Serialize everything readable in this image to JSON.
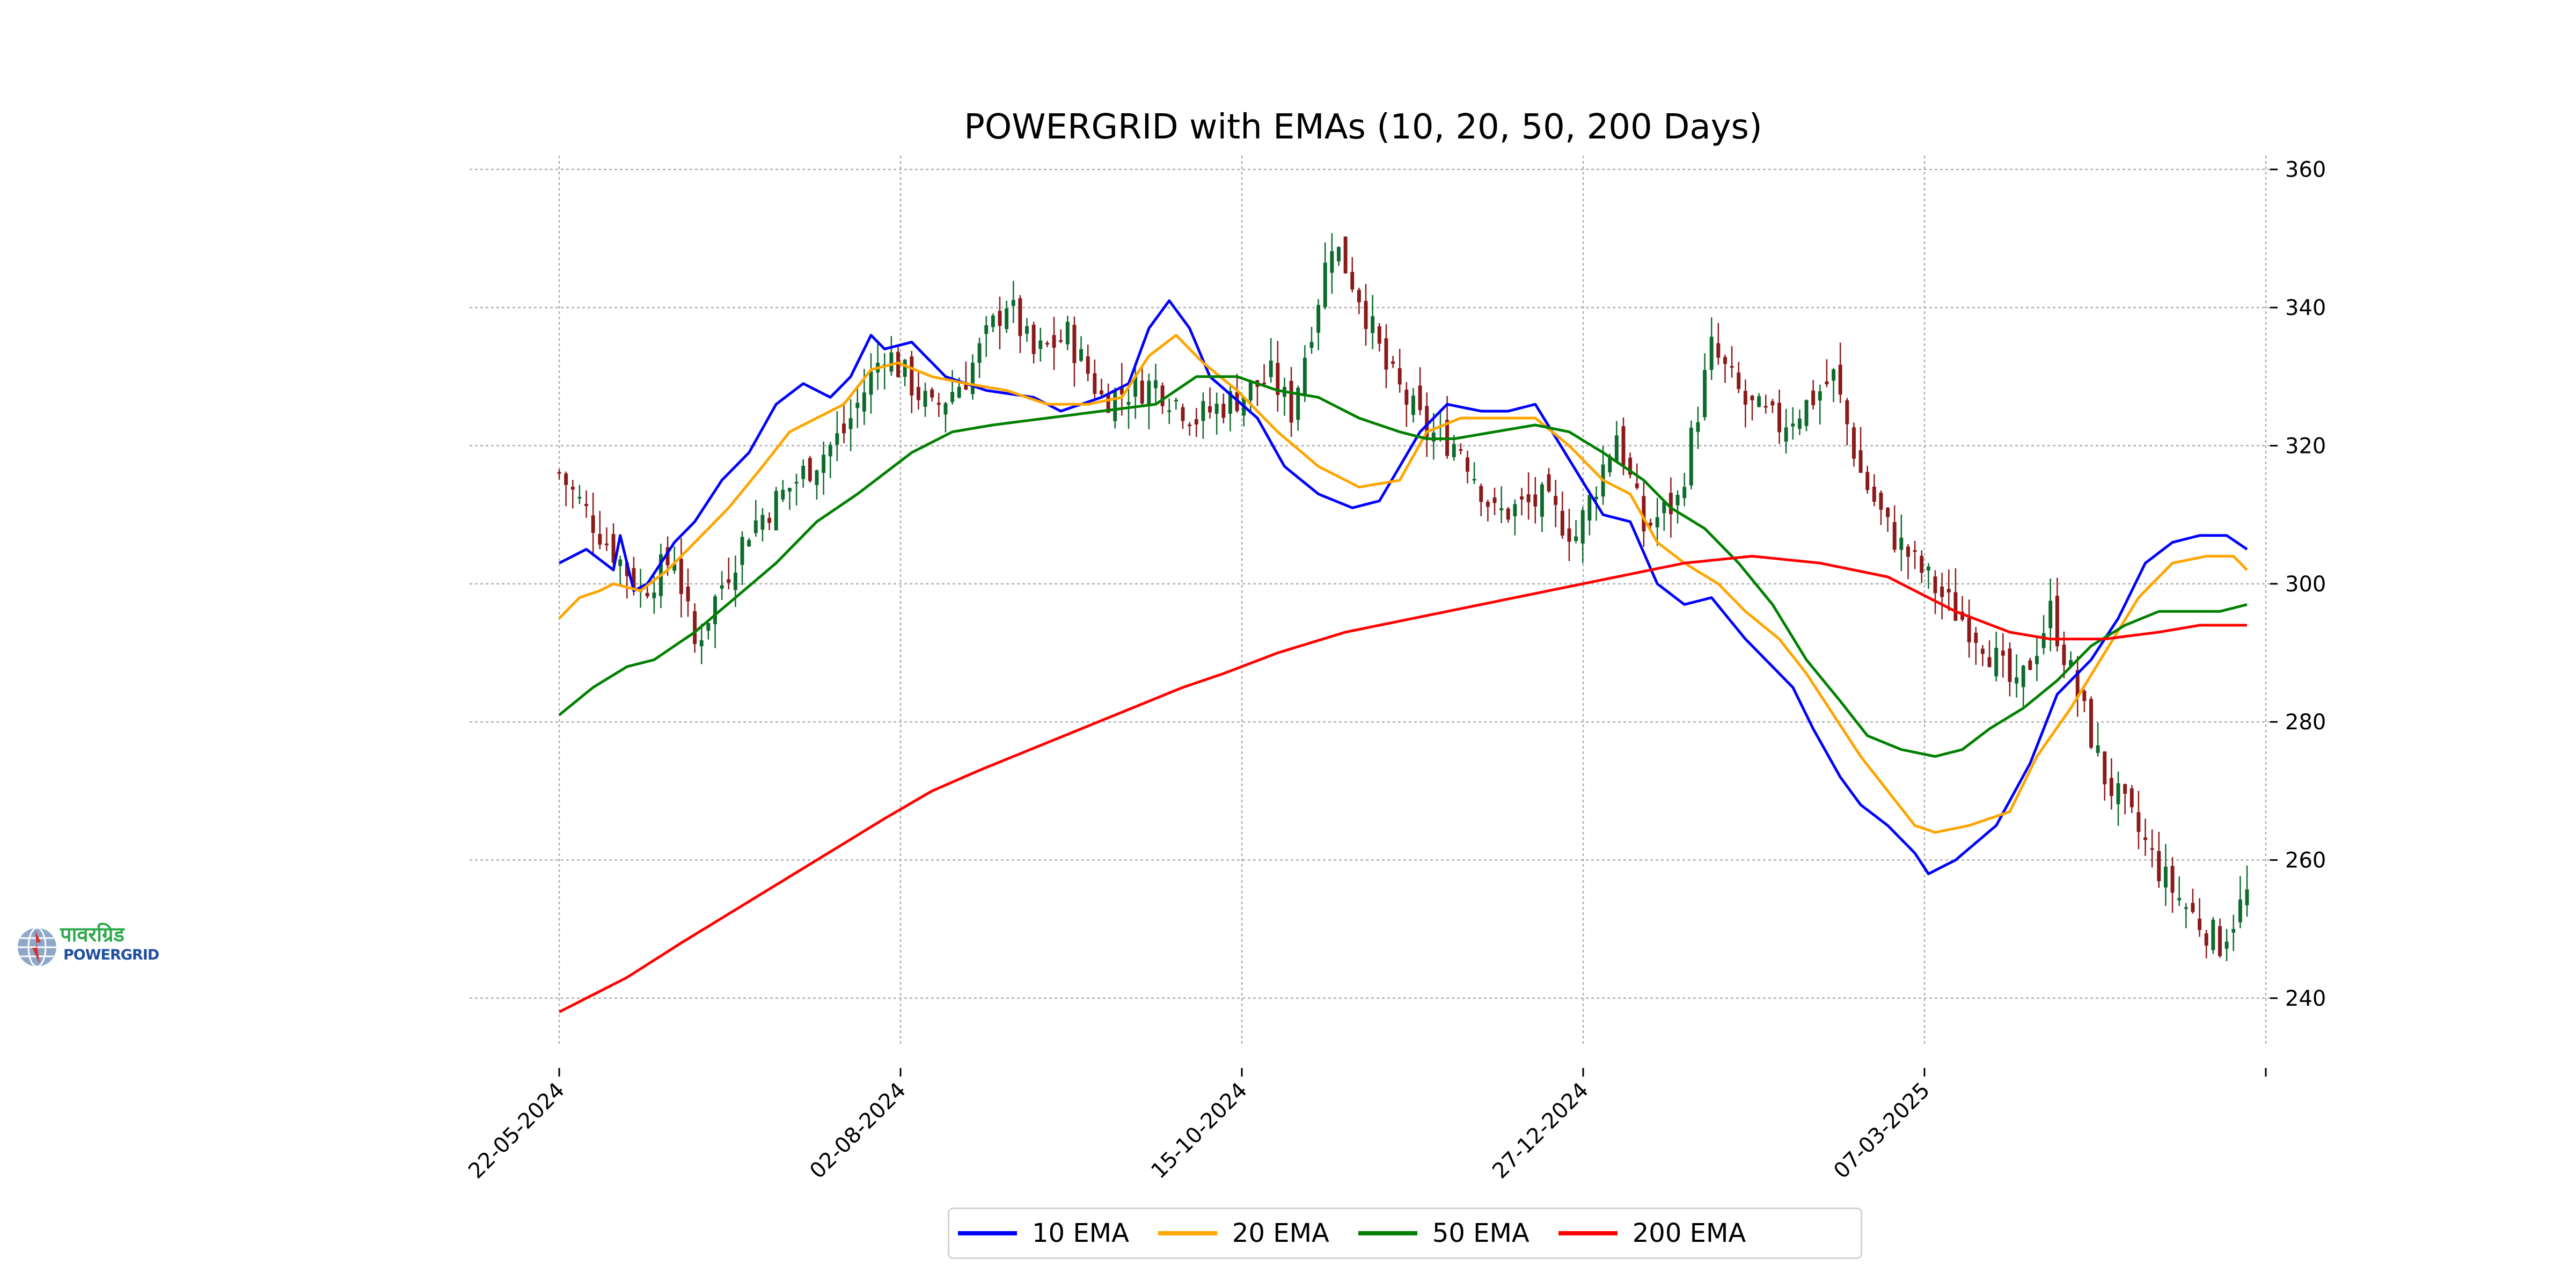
{
  "logo": {
    "hindi_text": "पावरग्रिड",
    "english_text": "POWERGRID",
    "hindi_color": "#2aa84a",
    "english_color": "#1f4fa0"
  },
  "chart_data": {
    "type": "candlestick",
    "title": "POWERGRID with EMAs (10, 20, 50, 200 Days)",
    "xlabel": "",
    "ylabel": "",
    "grid": true,
    "y_axis_side": "right",
    "ylim": [
      233,
      362
    ],
    "yticks": [
      240,
      260,
      280,
      300,
      320,
      340,
      360
    ],
    "x_tick_labels": [
      "22-05-2024",
      "02-08-2024",
      "15-10-2024",
      "27-12-2024",
      "07-03-2025",
      ""
    ],
    "up_color": "#0e6b2e",
    "down_color": "#8b1a1a",
    "ohlc_count": 250,
    "ohlc_anchor_closes": [
      [
        0,
        316
      ],
      [
        5,
        309
      ],
      [
        12,
        299
      ],
      [
        17,
        304
      ],
      [
        20,
        291
      ],
      [
        24,
        300
      ],
      [
        28,
        308
      ],
      [
        35,
        315
      ],
      [
        42,
        322
      ],
      [
        48,
        334
      ],
      [
        55,
        325
      ],
      [
        60,
        330
      ],
      [
        66,
        341
      ],
      [
        70,
        333
      ],
      [
        75,
        336
      ],
      [
        80,
        327
      ],
      [
        88,
        329
      ],
      [
        94,
        324
      ],
      [
        100,
        327
      ],
      [
        105,
        330
      ],
      [
        108,
        325
      ],
      [
        114,
        350
      ],
      [
        118,
        342
      ],
      [
        122,
        331
      ],
      [
        128,
        322
      ],
      [
        133,
        320
      ],
      [
        138,
        310
      ],
      [
        145,
        312
      ],
      [
        150,
        307
      ],
      [
        156,
        322
      ],
      [
        160,
        308
      ],
      [
        165,
        312
      ],
      [
        170,
        334
      ],
      [
        175,
        326
      ],
      [
        180,
        323
      ],
      [
        184,
        326
      ],
      [
        188,
        330
      ],
      [
        192,
        316
      ],
      [
        196,
        308
      ],
      [
        200,
        303
      ],
      [
        205,
        297
      ],
      [
        210,
        292
      ],
      [
        215,
        284
      ],
      [
        220,
        296
      ],
      [
        224,
        284
      ],
      [
        228,
        272
      ],
      [
        233,
        264
      ],
      [
        237,
        257
      ],
      [
        241,
        252
      ],
      [
        245,
        248
      ],
      [
        249,
        255
      ]
    ],
    "ema_series": [
      {
        "name": "10 EMA",
        "color": "#0000ff",
        "points": [
          [
            0,
            303
          ],
          [
            4,
            305
          ],
          [
            8,
            302
          ],
          [
            9,
            307
          ],
          [
            11,
            299
          ],
          [
            13,
            300
          ],
          [
            17,
            306
          ],
          [
            20,
            309
          ],
          [
            24,
            315
          ],
          [
            28,
            319
          ],
          [
            32,
            326
          ],
          [
            36,
            329
          ],
          [
            40,
            327
          ],
          [
            43,
            330
          ],
          [
            46,
            336
          ],
          [
            48,
            334
          ],
          [
            52,
            335
          ],
          [
            57,
            330
          ],
          [
            63,
            328
          ],
          [
            70,
            327
          ],
          [
            74,
            325
          ],
          [
            80,
            327
          ],
          [
            84,
            329
          ],
          [
            87,
            337
          ],
          [
            90,
            341
          ],
          [
            93,
            337
          ],
          [
            96,
            330
          ],
          [
            103,
            324
          ],
          [
            107,
            317
          ],
          [
            112,
            313
          ],
          [
            117,
            311
          ],
          [
            121,
            312
          ],
          [
            127,
            322
          ],
          [
            131,
            326
          ],
          [
            136,
            325
          ],
          [
            140,
            325
          ],
          [
            144,
            326
          ],
          [
            149,
            318
          ],
          [
            154,
            310
          ],
          [
            158,
            309
          ],
          [
            162,
            300
          ],
          [
            166,
            297
          ],
          [
            170,
            298
          ],
          [
            175,
            292
          ],
          [
            178,
            289
          ],
          [
            182,
            285
          ],
          [
            185,
            279
          ],
          [
            189,
            272
          ],
          [
            192,
            268
          ],
          [
            196,
            265
          ],
          [
            200,
            261
          ],
          [
            202,
            258
          ],
          [
            206,
            260
          ],
          [
            212,
            265
          ],
          [
            217,
            274
          ],
          [
            221,
            284
          ],
          [
            226,
            289
          ],
          [
            230,
            295
          ],
          [
            234,
            303
          ],
          [
            238,
            306
          ],
          [
            242,
            307
          ],
          [
            246,
            307
          ],
          [
            249,
            305
          ]
        ]
      },
      {
        "name": "20 EMA",
        "color": "#ffa500",
        "points": [
          [
            0,
            295
          ],
          [
            3,
            298
          ],
          [
            6,
            299
          ],
          [
            8,
            300
          ],
          [
            12,
            299
          ],
          [
            16,
            302
          ],
          [
            20,
            306
          ],
          [
            25,
            311
          ],
          [
            30,
            317
          ],
          [
            34,
            322
          ],
          [
            38,
            324
          ],
          [
            42,
            326
          ],
          [
            46,
            331
          ],
          [
            50,
            332
          ],
          [
            55,
            330
          ],
          [
            60,
            329
          ],
          [
            66,
            328
          ],
          [
            72,
            326
          ],
          [
            78,
            326
          ],
          [
            83,
            327
          ],
          [
            87,
            333
          ],
          [
            91,
            336
          ],
          [
            95,
            332
          ],
          [
            100,
            328
          ],
          [
            106,
            322
          ],
          [
            112,
            317
          ],
          [
            118,
            314
          ],
          [
            124,
            315
          ],
          [
            128,
            322
          ],
          [
            133,
            324
          ],
          [
            139,
            324
          ],
          [
            144,
            324
          ],
          [
            149,
            320
          ],
          [
            154,
            315
          ],
          [
            158,
            313
          ],
          [
            162,
            306
          ],
          [
            166,
            303
          ],
          [
            171,
            300
          ],
          [
            175,
            296
          ],
          [
            180,
            292
          ],
          [
            184,
            287
          ],
          [
            188,
            281
          ],
          [
            192,
            275
          ],
          [
            196,
            270
          ],
          [
            200,
            265
          ],
          [
            203,
            264
          ],
          [
            208,
            265
          ],
          [
            214,
            267
          ],
          [
            218,
            275
          ],
          [
            223,
            282
          ],
          [
            228,
            290
          ],
          [
            233,
            298
          ],
          [
            238,
            303
          ],
          [
            243,
            304
          ],
          [
            247,
            304
          ],
          [
            249,
            302
          ]
        ]
      },
      {
        "name": "50 EMA",
        "color": "#008000",
        "points": [
          [
            0,
            281
          ],
          [
            5,
            285
          ],
          [
            10,
            288
          ],
          [
            14,
            289
          ],
          [
            20,
            293
          ],
          [
            26,
            298
          ],
          [
            32,
            303
          ],
          [
            38,
            309
          ],
          [
            44,
            313
          ],
          [
            48,
            316
          ],
          [
            52,
            319
          ],
          [
            58,
            322
          ],
          [
            64,
            323
          ],
          [
            72,
            324
          ],
          [
            80,
            325
          ],
          [
            88,
            326
          ],
          [
            94,
            330
          ],
          [
            100,
            330
          ],
          [
            106,
            328
          ],
          [
            112,
            327
          ],
          [
            118,
            324
          ],
          [
            124,
            322
          ],
          [
            128,
            321
          ],
          [
            132,
            321
          ],
          [
            138,
            322
          ],
          [
            144,
            323
          ],
          [
            149,
            322
          ],
          [
            154,
            319
          ],
          [
            160,
            315
          ],
          [
            164,
            311
          ],
          [
            169,
            308
          ],
          [
            174,
            303
          ],
          [
            179,
            297
          ],
          [
            184,
            289
          ],
          [
            189,
            283
          ],
          [
            193,
            278
          ],
          [
            198,
            276
          ],
          [
            203,
            275
          ],
          [
            207,
            276
          ],
          [
            211,
            279
          ],
          [
            216,
            282
          ],
          [
            221,
            286
          ],
          [
            226,
            291
          ],
          [
            231,
            294
          ],
          [
            236,
            296
          ],
          [
            241,
            296
          ],
          [
            245,
            296
          ],
          [
            249,
            297
          ]
        ]
      },
      {
        "name": "200 EMA",
        "color": "#ff0000",
        "points": [
          [
            0,
            238
          ],
          [
            6,
            241
          ],
          [
            10,
            243
          ],
          [
            18,
            248
          ],
          [
            28,
            254
          ],
          [
            38,
            260
          ],
          [
            48,
            266
          ],
          [
            55,
            270
          ],
          [
            62,
            273
          ],
          [
            72,
            277
          ],
          [
            82,
            281
          ],
          [
            92,
            285
          ],
          [
            98,
            287
          ],
          [
            106,
            290
          ],
          [
            116,
            293
          ],
          [
            126,
            295
          ],
          [
            136,
            297
          ],
          [
            146,
            299
          ],
          [
            156,
            301
          ],
          [
            166,
            303
          ],
          [
            176,
            304
          ],
          [
            186,
            303
          ],
          [
            196,
            301
          ],
          [
            206,
            296
          ],
          [
            214,
            293
          ],
          [
            220,
            292
          ],
          [
            228,
            292
          ],
          [
            236,
            293
          ],
          [
            242,
            294
          ],
          [
            249,
            294
          ]
        ]
      }
    ]
  }
}
